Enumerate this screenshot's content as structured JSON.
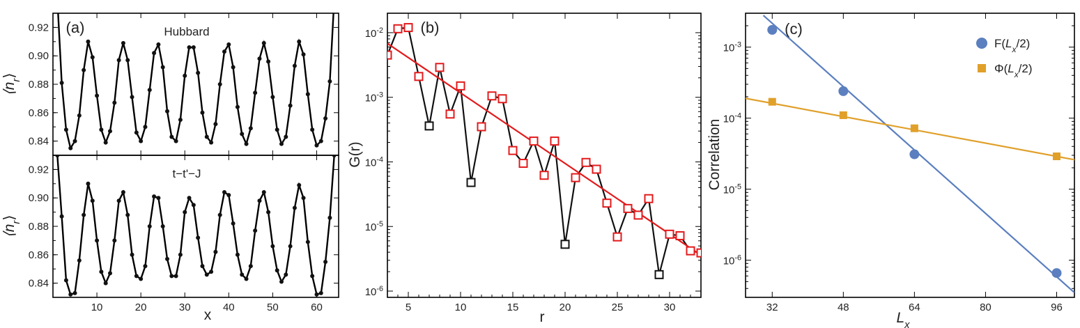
{
  "chart_data": [
    {
      "panel": "(a)",
      "type": "line",
      "subplots": [
        {
          "label": "Hubbard",
          "ylabel": "⟨n_r⟩",
          "ylim": [
            0.83,
            0.93
          ],
          "yticks": [
            "0.84",
            "0.86",
            "0.88",
            "0.90",
            "0.92"
          ],
          "x": [
            1,
            2,
            3,
            4,
            5,
            6,
            7,
            8,
            9,
            10,
            11,
            12,
            13,
            14,
            15,
            16,
            17,
            18,
            19,
            20,
            21,
            22,
            23,
            24,
            25,
            26,
            27,
            28,
            29,
            30,
            31,
            32,
            33,
            34,
            35,
            36,
            37,
            38,
            39,
            40,
            41,
            42,
            43,
            44,
            45,
            46,
            47,
            48,
            49,
            50,
            51,
            52,
            53,
            54,
            55,
            56,
            57,
            58,
            59,
            60,
            61,
            62,
            63,
            64
          ],
          "values": [
            0.94,
            0.881,
            0.848,
            0.835,
            0.84,
            0.858,
            0.89,
            0.91,
            0.899,
            0.872,
            0.848,
            0.839,
            0.847,
            0.867,
            0.897,
            0.909,
            0.897,
            0.871,
            0.846,
            0.84,
            0.85,
            0.876,
            0.902,
            0.908,
            0.892,
            0.861,
            0.843,
            0.84,
            0.855,
            0.886,
            0.906,
            0.906,
            0.888,
            0.86,
            0.843,
            0.839,
            0.852,
            0.88,
            0.903,
            0.908,
            0.892,
            0.864,
            0.845,
            0.838,
            0.849,
            0.874,
            0.898,
            0.909,
            0.896,
            0.871,
            0.848,
            0.838,
            0.843,
            0.865,
            0.893,
            0.91,
            0.901,
            0.873,
            0.848,
            0.837,
            0.84,
            0.856,
            0.882,
            0.94
          ]
        },
        {
          "label": "t−t'−J",
          "ylabel": "⟨n_r⟩",
          "xlabel": "x",
          "ylim": [
            0.83,
            0.93
          ],
          "yticks": [
            "0.84",
            "0.86",
            "0.88",
            "0.90",
            "0.92"
          ],
          "xlim": [
            0,
            65
          ],
          "xticks": [
            "10",
            "20",
            "30",
            "40",
            "50",
            "60"
          ],
          "x": [
            1,
            2,
            3,
            4,
            5,
            6,
            7,
            8,
            9,
            10,
            11,
            12,
            13,
            14,
            15,
            16,
            17,
            18,
            19,
            20,
            21,
            22,
            23,
            24,
            25,
            26,
            27,
            28,
            29,
            30,
            31,
            32,
            33,
            34,
            35,
            36,
            37,
            38,
            39,
            40,
            41,
            42,
            43,
            44,
            45,
            46,
            47,
            48,
            49,
            50,
            51,
            52,
            53,
            54,
            55,
            56,
            57,
            58,
            59,
            60,
            61,
            62,
            63,
            64
          ],
          "values": [
            0.93,
            0.887,
            0.842,
            0.832,
            0.833,
            0.856,
            0.888,
            0.91,
            0.898,
            0.87,
            0.848,
            0.84,
            0.847,
            0.87,
            0.898,
            0.904,
            0.888,
            0.86,
            0.845,
            0.843,
            0.852,
            0.88,
            0.901,
            0.9,
            0.88,
            0.857,
            0.845,
            0.845,
            0.86,
            0.89,
            0.9,
            0.895,
            0.872,
            0.852,
            0.846,
            0.848,
            0.862,
            0.888,
            0.904,
            0.902,
            0.882,
            0.86,
            0.846,
            0.843,
            0.852,
            0.877,
            0.898,
            0.904,
            0.89,
            0.866,
            0.849,
            0.841,
            0.846,
            0.866,
            0.893,
            0.909,
            0.9,
            0.869,
            0.845,
            0.832,
            0.833,
            0.855,
            0.886,
            0.93
          ]
        }
      ]
    },
    {
      "panel": "(b)",
      "type": "line",
      "xlabel": "r",
      "ylabel": "G(r)",
      "yscale": "log",
      "ylim": [
        8e-07,
        0.02
      ],
      "xlim": [
        3,
        33
      ],
      "xticks": [
        "5",
        "10",
        "15",
        "20",
        "25",
        "30"
      ],
      "ytick_base": "10",
      "ytick_exponents": [
        "-6",
        "-5",
        "-4",
        "-3",
        "-2"
      ],
      "colors": {
        "positive": "#e31a1c",
        "negative": "#111111",
        "fit": "#e31a1c",
        "curve": "#111111"
      },
      "x": [
        3,
        4,
        5,
        6,
        7,
        8,
        9,
        10,
        11,
        12,
        13,
        14,
        15,
        16,
        17,
        18,
        19,
        20,
        21,
        22,
        23,
        24,
        25,
        26,
        27,
        28,
        29,
        30,
        31,
        32,
        33
      ],
      "values": [
        0.0045,
        0.0115,
        0.012,
        0.0021,
        0.00036,
        0.0029,
        0.00055,
        0.0015,
        4.8e-05,
        0.00035,
        0.00105,
        0.00095,
        0.00015,
        9.5e-05,
        0.00021,
        6.2e-05,
        0.00021,
        5.3e-06,
        5.7e-05,
        9.8e-05,
        7.7e-05,
        2.3e-05,
        6.9e-06,
        1.9e-05,
        1.5e-05,
        2.7e-05,
        1.8e-06,
        7.6e-06,
        7.2e-06,
        4.2e-06,
        3.9e-06
      ],
      "sign": [
        "+",
        "+",
        "+",
        "+",
        "-",
        "+",
        "+",
        "+",
        "-",
        "+",
        "+",
        "+",
        "+",
        "+",
        "+",
        "+",
        "+",
        "-",
        "+",
        "+",
        "+",
        "+",
        "+",
        "+",
        "+",
        "+",
        "-",
        "+",
        "+",
        "+",
        "+"
      ],
      "fit_line": {
        "x": [
          3,
          33
        ],
        "y": [
          0.0068,
          3.6e-06
        ]
      }
    },
    {
      "panel": "(c)",
      "type": "scatter",
      "xlabel": "L_x",
      "ylabel": "Correlation",
      "yscale": "log",
      "xlim": [
        26,
        100
      ],
      "ylim": [
        3e-07,
        0.003
      ],
      "xticks": [
        "32",
        "48",
        "64",
        "80",
        "96"
      ],
      "ytick_base": "10",
      "ytick_exponents": [
        "-6",
        "-5",
        "-4",
        "-3"
      ],
      "legend_position": "top-right",
      "series": [
        {
          "name": "F(L_x/2)",
          "color": "#5b7fbf",
          "marker": "circle",
          "x": [
            32,
            48,
            64,
            96
          ],
          "values": [
            0.00175,
            0.00024,
            3.1e-05,
            6.6e-07
          ],
          "fit_line": {
            "x": [
              30,
              100
            ],
            "y": [
              0.0028,
              3.5e-07
            ]
          }
        },
        {
          "name": "Φ(L_x/2)",
          "color": "#e0a02a",
          "marker": "square",
          "x": [
            32,
            48,
            64,
            96
          ],
          "values": [
            0.00017,
            0.00011,
            7.2e-05,
            2.9e-05
          ],
          "fit_line": {
            "x": [
              26,
              100
            ],
            "y": [
              0.00019,
              2.6e-05
            ]
          }
        }
      ]
    }
  ]
}
